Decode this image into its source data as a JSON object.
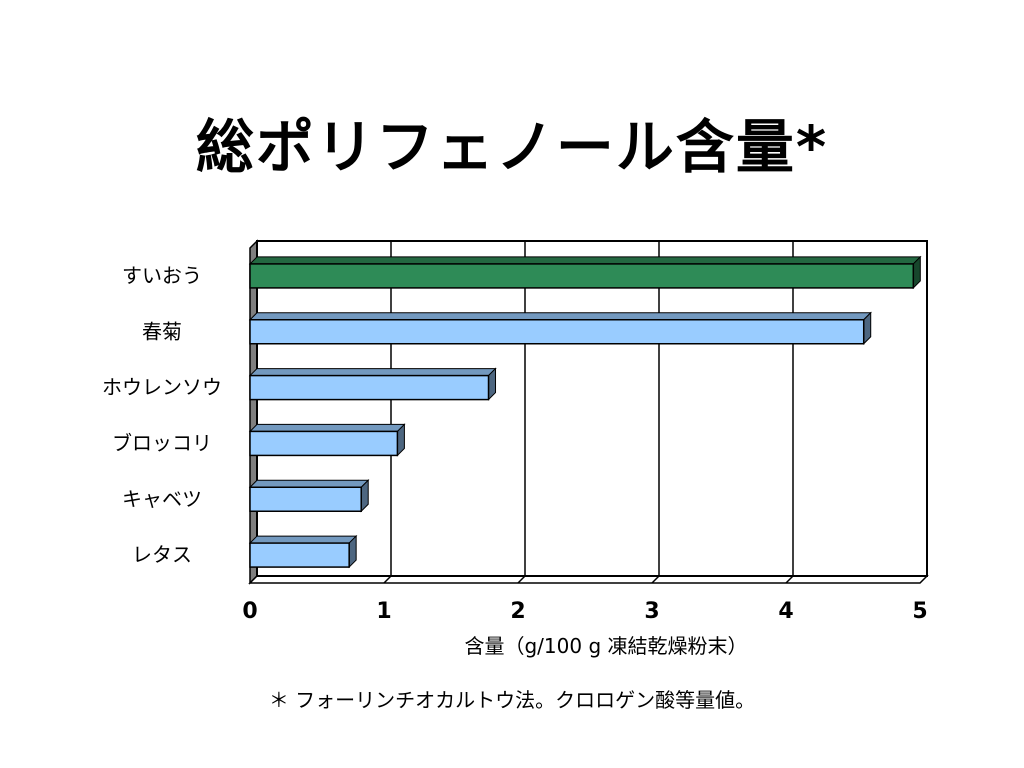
{
  "chart_data": {
    "type": "bar",
    "orientation": "horizontal",
    "title": "総ポリフェノール含量*",
    "categories": [
      "すいおう",
      "春菊",
      "ホウレンソウ",
      "ブロッコリ",
      "キャベツ",
      "レタス"
    ],
    "values": [
      4.95,
      4.58,
      1.78,
      1.1,
      0.83,
      0.74
    ],
    "bar_colors": [
      "#2e8b57",
      "#99ccff",
      "#99ccff",
      "#99ccff",
      "#99ccff",
      "#99ccff"
    ],
    "xlabel": "含量（g/100 g 凍結乾燥粉末）",
    "xlim": [
      0,
      5
    ],
    "x_ticks": [
      "0",
      "1",
      "2",
      "3",
      "4",
      "5"
    ],
    "grid": true
  },
  "footnote": "＊ フォーリンチオカルトウ法。クロロゲン酸等量値。"
}
